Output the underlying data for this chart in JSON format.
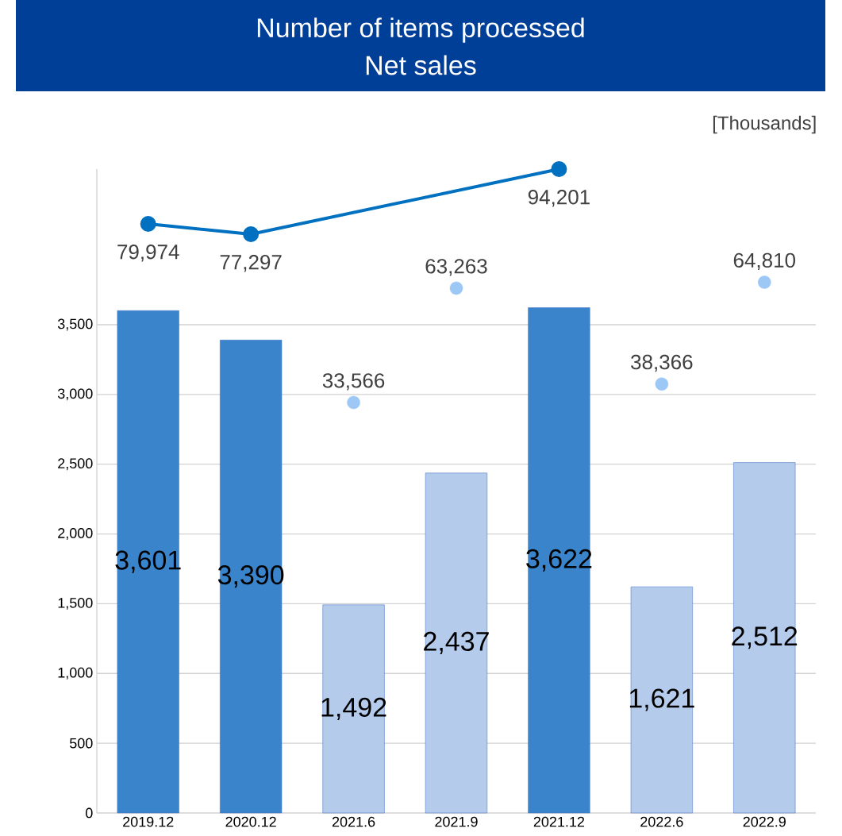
{
  "chart_data": {
    "type": "bar",
    "title": "Number of items processed",
    "subtitle": "Net sales",
    "annotations": [
      "[Thousands]"
    ],
    "categories": [
      "2019.12",
      "2020.12",
      "2021.6",
      "2021.9",
      "2021.12",
      "2022.6",
      "2022.9"
    ],
    "values": [
      3601,
      3390,
      1492,
      2437,
      3622,
      1621,
      2512
    ],
    "value_labels": [
      "3,601",
      "3,390",
      "1,492",
      "2,437",
      "3,622",
      "1,621",
      "2,512"
    ],
    "colors": [
      "#3a84cc",
      "#3a84cc",
      "#b4cbeb",
      "#b4cbeb",
      "#3a84cc",
      "#b4cbeb",
      "#b4cbeb"
    ],
    "ylim": [
      0,
      4615
    ],
    "y2lim": [
      -73061,
      94201
    ],
    "yticks": [
      0,
      {
        "value": 500,
        "label": "500"
      },
      {
        "value": 1000,
        "label": "1,000"
      },
      {
        "value": 1500,
        "label": "1,500"
      },
      {
        "value": 2000,
        "label": "2,000"
      },
      {
        "value": 2500,
        "label": "2,500"
      },
      {
        "value": 3000,
        "label": "3,000"
      },
      {
        "value": 3500,
        "label": "3,500"
      }
    ],
    "grid": "y",
    "series": [
      {
        "type": "line",
        "axis": "y2",
        "color": "#0070c0",
        "marker": "circle",
        "x": [
          "2019.12",
          "2020.12",
          "2021.12"
        ],
        "values": [
          79974,
          77297,
          94201
        ],
        "value_labels": [
          "79,974",
          "77,297",
          "94,201"
        ]
      },
      {
        "type": "scatter",
        "axis": "y2",
        "color": "#9dc8f5",
        "marker": "circle",
        "x": [
          "2021.6",
          "2021.9",
          "2022.6",
          "2022.9"
        ],
        "values": [
          33566,
          63263,
          38366,
          64810
        ],
        "value_labels": [
          "33,566",
          "63,263",
          "38,366",
          "64,810"
        ]
      }
    ]
  }
}
